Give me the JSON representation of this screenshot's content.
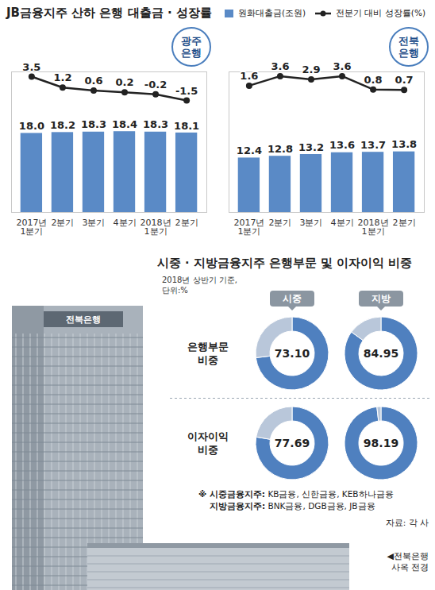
{
  "header": {
    "title": "JB금융지주 산하 은행 대출금 · 성장률"
  },
  "chart_data": [
    {
      "type": "bar",
      "title": "광주은행",
      "categories": [
        "2017년 1분기",
        "2분기",
        "3분기",
        "4분기",
        "2018년 1분기",
        "2분기"
      ],
      "series": [
        {
          "name": "원화대출금(조원)",
          "type": "bar",
          "color": "#5a8ac6",
          "values": [
            18.0,
            18.2,
            18.3,
            18.4,
            18.3,
            18.1
          ],
          "value_labels": [
            "18.0",
            "18.2",
            "18.3",
            "18.4",
            "18.3",
            "18.1"
          ]
        },
        {
          "name": "전분기 대비 성장률(%)",
          "type": "line",
          "axis": "y2",
          "color": "#222222",
          "marker": "circle",
          "values": [
            3.5,
            1.2,
            0.6,
            0.2,
            -0.2,
            -1.5
          ],
          "value_labels": [
            "3.5",
            "1.2",
            "0.6",
            "0.2",
            "-0.2",
            "-1.5"
          ]
        }
      ],
      "ylim": [
        0,
        32
      ],
      "yticks": [],
      "y2lim": [
        -25,
        4.5
      ],
      "y2ticks": [],
      "tick_labels": "x",
      "grid": false,
      "data_labels": true,
      "legend": "top-right"
    },
    {
      "type": "bar",
      "title": "전북은행",
      "categories": [
        "2017년 1분기",
        "2분기",
        "3분기",
        "4분기",
        "2018년 1분기",
        "2분기"
      ],
      "series": [
        {
          "name": "원화대출금(조원)",
          "type": "bar",
          "color": "#5a8ac6",
          "values": [
            12.4,
            12.8,
            13.2,
            13.6,
            13.7,
            13.8
          ],
          "value_labels": [
            "12.4",
            "12.8",
            "13.2",
            "13.6",
            "13.7",
            "13.8"
          ]
        },
        {
          "name": "전분기 대비 성장률(%)",
          "type": "line",
          "axis": "y2",
          "color": "#222222",
          "marker": "circle",
          "values": [
            1.6,
            3.6,
            2.9,
            3.6,
            0.8,
            0.7
          ],
          "value_labels": [
            "1.6",
            "3.6",
            "2.9",
            "3.6",
            "0.8",
            "0.7"
          ]
        }
      ],
      "ylim": [
        0,
        32
      ],
      "yticks": [],
      "y2lim": [
        -25,
        4.5
      ],
      "y2ticks": [],
      "tick_labels": "x",
      "grid": false,
      "data_labels": true,
      "legend": "top-right"
    },
    {
      "type": "pie",
      "title": "시중 · 지방금융지주 은행부문 및 이자이익 비중",
      "subtitle": "2018년 상반기 기준, 단위:%",
      "columns": [
        "시중",
        "지방"
      ],
      "colors": [
        "#4f80bf",
        "#b9c7da"
      ],
      "data_labels": true,
      "rows": [
        {
          "name": "은행부문 비중",
          "pies": [
            {
              "values": [
                73.1,
                26.9
              ],
              "value_labels": [
                "73.10",
                null
              ]
            },
            {
              "values": [
                84.95,
                15.05
              ],
              "value_labels": [
                "84.95",
                null
              ]
            }
          ]
        },
        {
          "name": "이자이익 비중",
          "pies": [
            {
              "values": [
                77.69,
                22.31
              ],
              "value_labels": [
                "77.69",
                null
              ]
            },
            {
              "values": [
                98.19,
                1.81
              ],
              "value_labels": [
                "98.19",
                null
              ]
            }
          ]
        }
      ],
      "notes": [
        "※ 시중금융지주: KB금융, 신한금융, KEB하나금융",
        "지방금융지주: BNK금융, DGB금융, JB금융"
      ],
      "source": "자료: 각 사"
    }
  ],
  "photo": {
    "sign": "전북은행",
    "caption": "◀전북은행 사옥 전경"
  }
}
